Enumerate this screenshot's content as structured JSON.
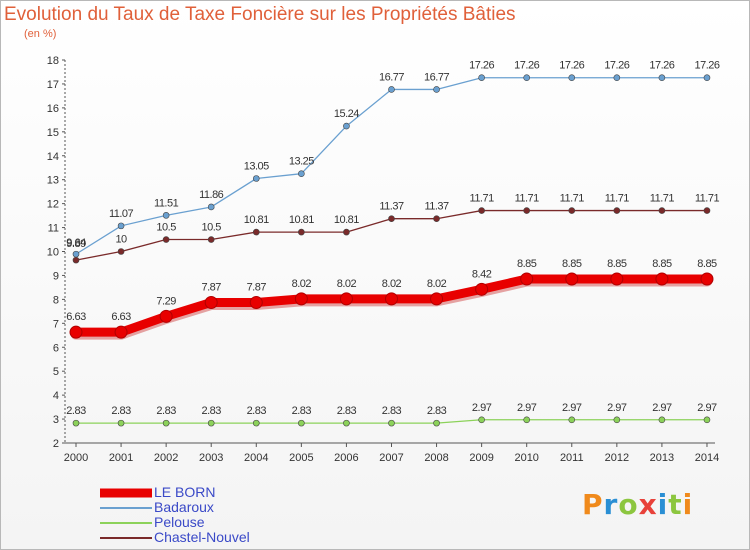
{
  "title": "Evolution du Taux de Taxe Foncière sur les Propriétés Bâties",
  "subtitle": "(en %)",
  "logo": {
    "text": "Proxiti",
    "colors": [
      "#f08a1c",
      "#2a8fd4",
      "#8cc63f",
      "#e8413a",
      "#2a8fd4",
      "#8cc63f",
      "#f08a1c"
    ]
  },
  "chart_data": {
    "type": "line",
    "x": [
      "2000",
      "2001",
      "2002",
      "2003",
      "2004",
      "2005",
      "2006",
      "2007",
      "2008",
      "2009",
      "2010",
      "2011",
      "2012",
      "2013",
      "2014"
    ],
    "ylim": [
      2,
      18
    ],
    "yticks": [
      2,
      3,
      4,
      5,
      6,
      7,
      8,
      9,
      10,
      11,
      12,
      13,
      14,
      15,
      16,
      17,
      18
    ],
    "grid": false,
    "legend_position": "bottom-left",
    "series": [
      {
        "name": "LE BORN",
        "color": "#e80000",
        "values": [
          6.63,
          6.63,
          7.29,
          7.87,
          7.87,
          8.02,
          8.02,
          8.02,
          8.02,
          8.42,
          8.85,
          8.85,
          8.85,
          8.85,
          8.85
        ],
        "labels": [
          "6.63",
          "6.63",
          "7.29",
          "7.87",
          "7.87",
          "8.02",
          "8.02",
          "8.02",
          "8.02",
          "8.42",
          "8.85",
          "8.85",
          "8.85",
          "8.85",
          "8.85"
        ]
      },
      {
        "name": "Badaroux",
        "color": "#6aa0d0",
        "values": [
          9.89,
          11.07,
          11.51,
          11.86,
          13.05,
          13.25,
          15.24,
          16.77,
          16.77,
          17.26,
          17.26,
          17.26,
          17.26,
          17.26,
          17.26
        ],
        "labels": [
          "9.89",
          "11.07",
          "11.51",
          "11.86",
          "13.05",
          "13.25",
          "15.24",
          "16.77",
          "16.77",
          "17.26",
          "17.26",
          "17.26",
          "17.26",
          "17.26",
          "17.26"
        ]
      },
      {
        "name": "Pelouse",
        "color": "#8cd25a",
        "values": [
          2.83,
          2.83,
          2.83,
          2.83,
          2.83,
          2.83,
          2.83,
          2.83,
          2.83,
          2.97,
          2.97,
          2.97,
          2.97,
          2.97,
          2.97
        ],
        "labels": [
          "2.83",
          "2.83",
          "2.83",
          "2.83",
          "2.83",
          "2.83",
          "2.83",
          "2.83",
          "2.83",
          "2.97",
          "2.97",
          "2.97",
          "2.97",
          "2.97",
          "2.97"
        ]
      },
      {
        "name": "Chastel-Nouvel",
        "color": "#7a2a2a",
        "values": [
          9.64,
          10,
          10.5,
          10.5,
          10.81,
          10.81,
          10.81,
          11.37,
          11.37,
          11.71,
          11.71,
          11.71,
          11.71,
          11.71,
          11.71
        ],
        "labels": [
          "9.64",
          "10",
          "10.5",
          "10.5",
          "10.81",
          "10.81",
          "10.81",
          "11.37",
          "11.37",
          "11.71",
          "11.71",
          "11.71",
          "11.71",
          "11.71",
          "11.71"
        ]
      }
    ]
  }
}
